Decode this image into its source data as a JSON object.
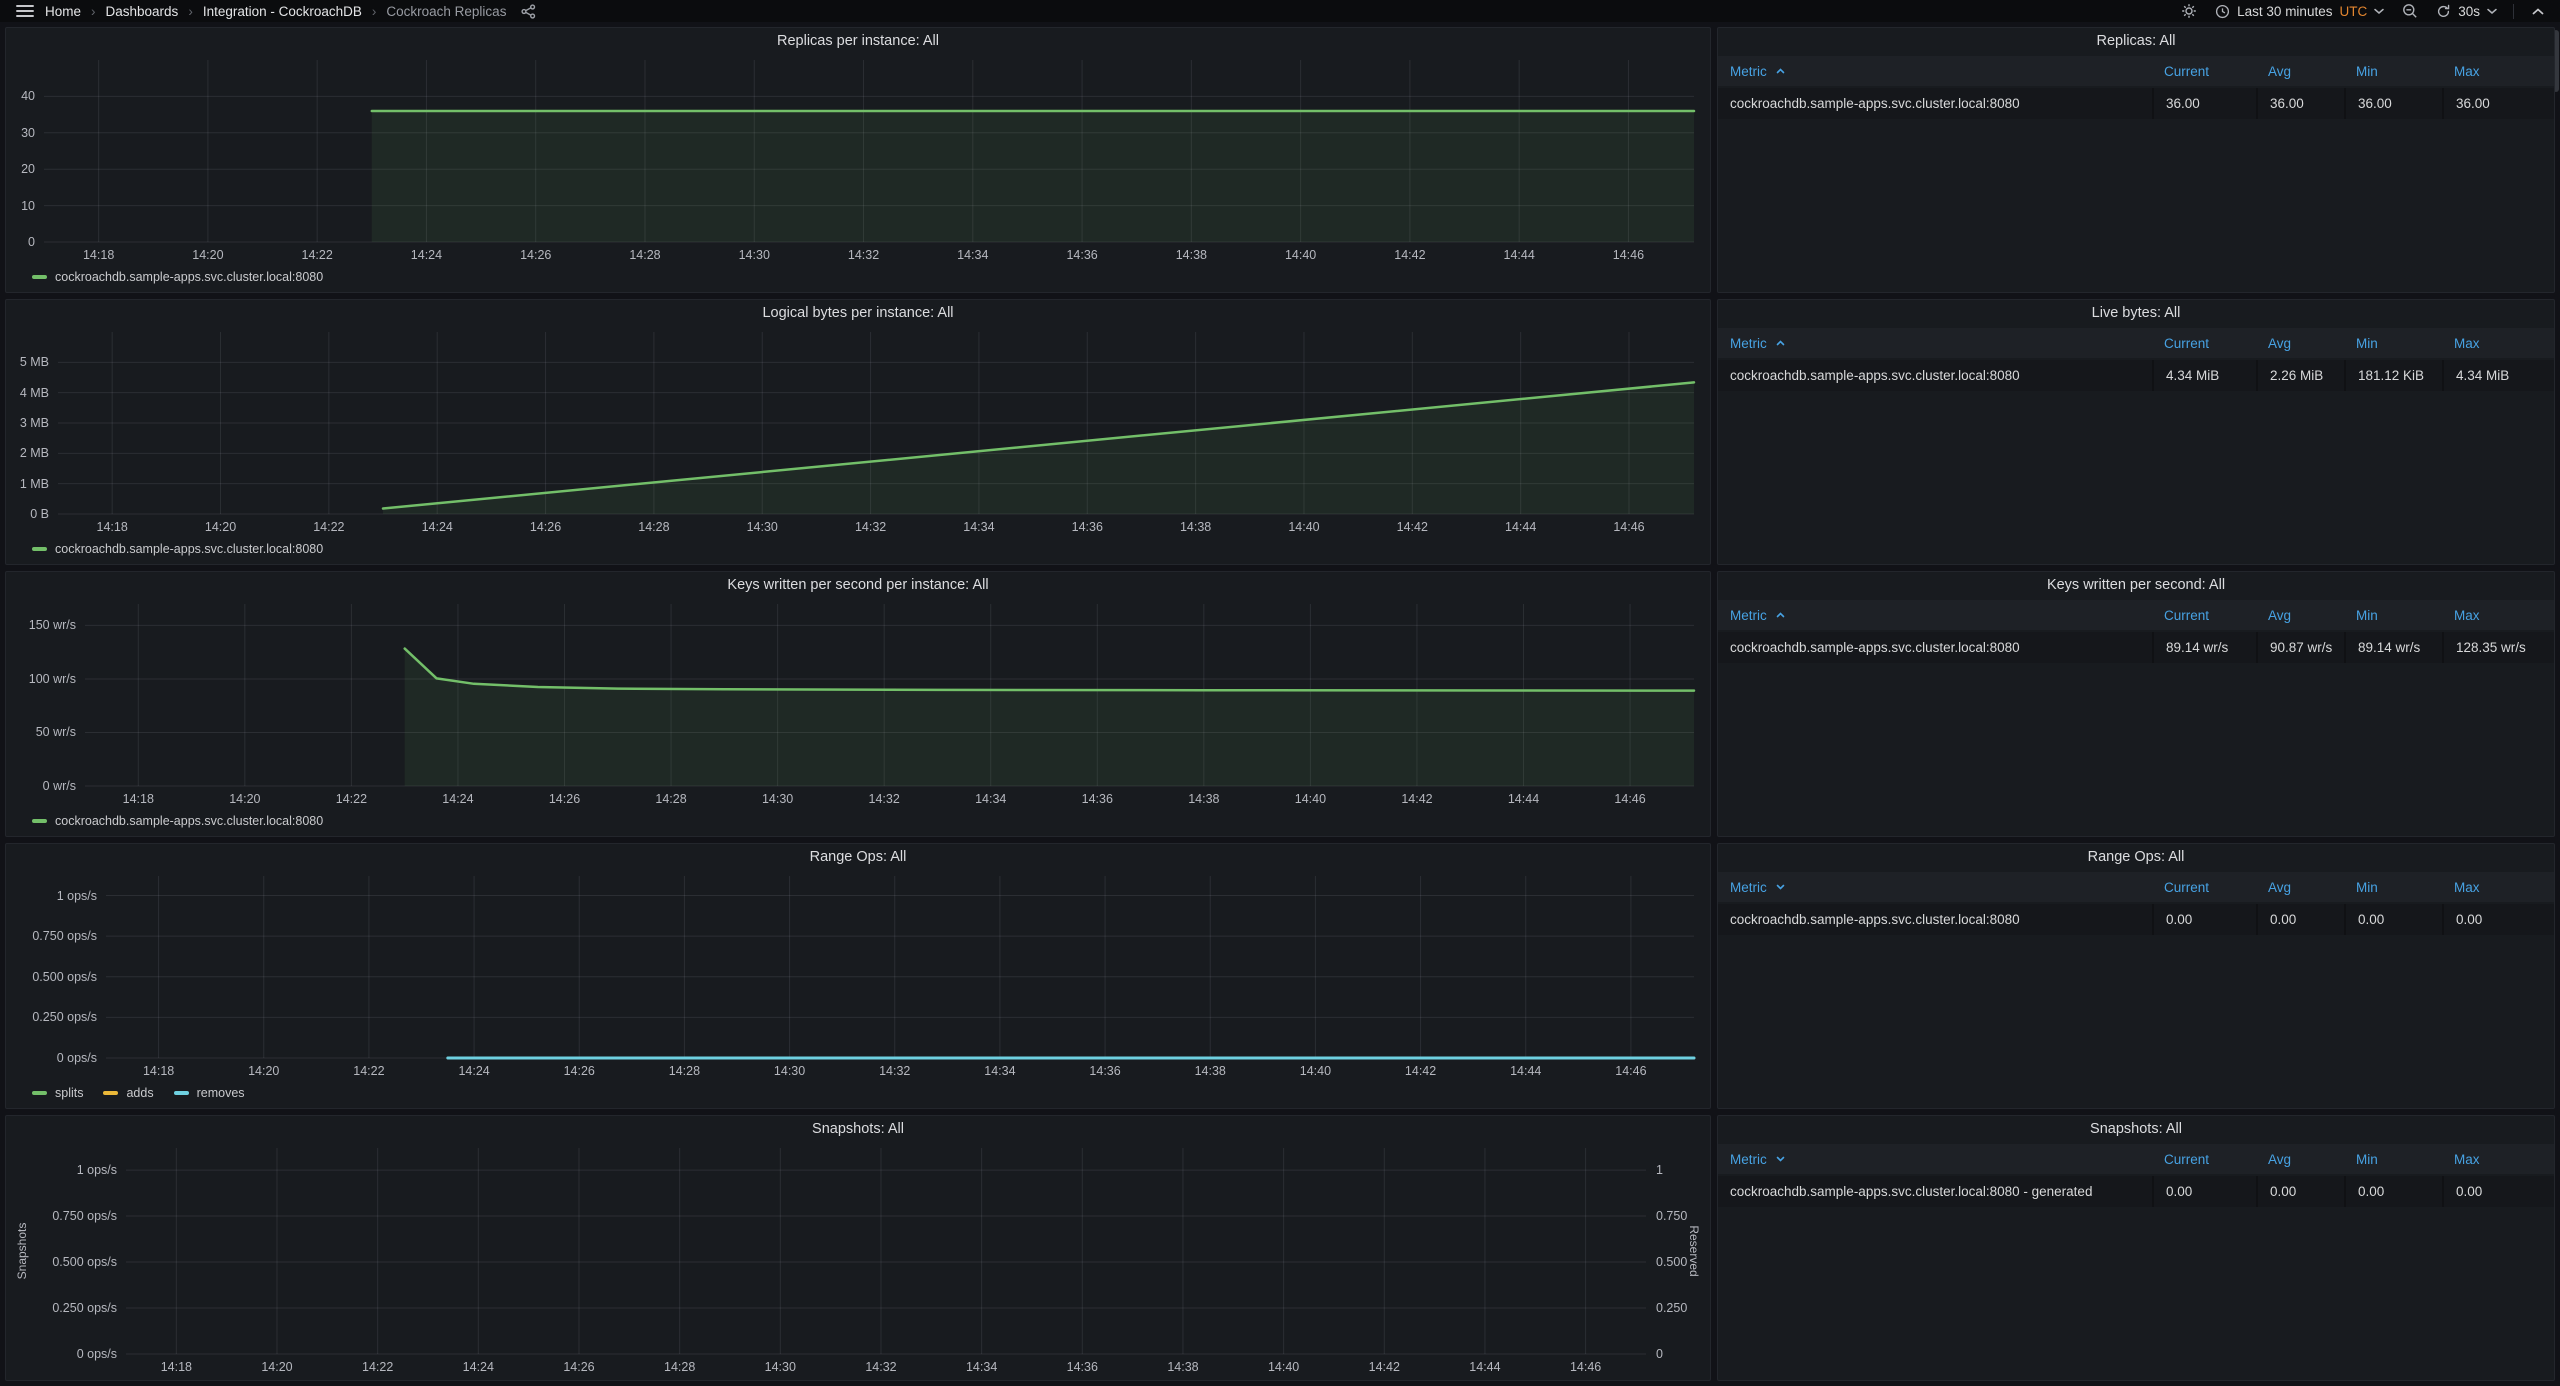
{
  "navbar": {
    "breadcrumbs": [
      "Home",
      "Dashboards",
      "Integration - CockroachDB",
      "Cockroach Replicas"
    ],
    "separator": "›",
    "time_range": "Last 30 minutes",
    "timezone": "UTC",
    "refresh_interval": "30s"
  },
  "colors": {
    "page_bg": "#111217",
    "panel_bg": "#181b1f",
    "grid": "rgba(204,204,220,0.11)",
    "header_blue": "#47a2e3",
    "utc_orange": "#e2852f",
    "series": {
      "green": "#73bf69",
      "yellow": "#eab839",
      "cyan": "#6ed0e0"
    }
  },
  "chart_data": [
    {
      "type": "line",
      "title": "Replicas per instance: All",
      "x_domain": [
        17,
        47.2
      ],
      "x_tick_labels": [
        "14:18",
        "14:20",
        "14:22",
        "14:24",
        "14:26",
        "14:28",
        "14:30",
        "14:32",
        "14:34",
        "14:36",
        "14:38",
        "14:40",
        "14:42",
        "14:44",
        "14:46"
      ],
      "y_ticks": [
        {
          "v": 0,
          "label": "0"
        },
        {
          "v": 10,
          "label": "10"
        },
        {
          "v": 20,
          "label": "20"
        },
        {
          "v": 30,
          "label": "30"
        },
        {
          "v": 40,
          "label": "40"
        }
      ],
      "y_max": 50,
      "series": [
        {
          "name": "cockroachdb.sample-apps.svc.cluster.local:8080",
          "color": "green",
          "fill": true,
          "width": 2.5,
          "points": [
            [
              23,
              36
            ],
            [
              47.2,
              36
            ]
          ]
        }
      ],
      "legend": [
        {
          "label": "cockroachdb.sample-apps.svc.cluster.local:8080",
          "color": "green"
        }
      ]
    },
    {
      "type": "line",
      "title": "Logical bytes per instance: All",
      "x_domain": [
        17,
        47.2
      ],
      "x_tick_labels": [
        "14:18",
        "14:20",
        "14:22",
        "14:24",
        "14:26",
        "14:28",
        "14:30",
        "14:32",
        "14:34",
        "14:36",
        "14:38",
        "14:40",
        "14:42",
        "14:44",
        "14:46"
      ],
      "y_ticks": [
        {
          "v": 0,
          "label": "0 B"
        },
        {
          "v": 1,
          "label": "1 MB"
        },
        {
          "v": 2,
          "label": "2 MB"
        },
        {
          "v": 3,
          "label": "3 MB"
        },
        {
          "v": 4,
          "label": "4 MB"
        },
        {
          "v": 5,
          "label": "5 MB"
        }
      ],
      "y_max": 6,
      "y_unit": "MB",
      "series": [
        {
          "name": "cockroachdb.sample-apps.svc.cluster.local:8080",
          "color": "green",
          "fill": true,
          "width": 2.5,
          "points": [
            [
              23,
              0.18
            ],
            [
              47.2,
              4.34
            ]
          ]
        }
      ],
      "legend": [
        {
          "label": "cockroachdb.sample-apps.svc.cluster.local:8080",
          "color": "green"
        }
      ]
    },
    {
      "type": "line",
      "title": "Keys written per second per instance: All",
      "x_domain": [
        17,
        47.2
      ],
      "x_tick_labels": [
        "14:18",
        "14:20",
        "14:22",
        "14:24",
        "14:26",
        "14:28",
        "14:30",
        "14:32",
        "14:34",
        "14:36",
        "14:38",
        "14:40",
        "14:42",
        "14:44",
        "14:46"
      ],
      "y_ticks": [
        {
          "v": 0,
          "label": "0 wr/s"
        },
        {
          "v": 50,
          "label": "50 wr/s"
        },
        {
          "v": 100,
          "label": "100 wr/s"
        },
        {
          "v": 150,
          "label": "150 wr/s"
        }
      ],
      "y_max": 170,
      "y_unit": "wr/s",
      "series": [
        {
          "name": "cockroachdb.sample-apps.svc.cluster.local:8080",
          "color": "green",
          "fill": true,
          "width": 2.5,
          "points": [
            [
              23,
              128.35
            ],
            [
              23.6,
              100.5
            ],
            [
              24.3,
              95.5
            ],
            [
              25.5,
              92.5
            ],
            [
              27,
              91
            ],
            [
              29,
              90.3
            ],
            [
              33,
              89.8
            ],
            [
              38,
              89.5
            ],
            [
              47.2,
              89.14
            ]
          ]
        }
      ],
      "legend": [
        {
          "label": "cockroachdb.sample-apps.svc.cluster.local:8080",
          "color": "green"
        }
      ]
    },
    {
      "type": "line",
      "title": "Range Ops: All",
      "x_domain": [
        17,
        47.2
      ],
      "x_tick_labels": [
        "14:18",
        "14:20",
        "14:22",
        "14:24",
        "14:26",
        "14:28",
        "14:30",
        "14:32",
        "14:34",
        "14:36",
        "14:38",
        "14:40",
        "14:42",
        "14:44",
        "14:46"
      ],
      "y_ticks": [
        {
          "v": 0,
          "label": "0 ops/s"
        },
        {
          "v": 0.25,
          "label": "0.250 ops/s"
        },
        {
          "v": 0.5,
          "label": "0.500 ops/s"
        },
        {
          "v": 0.75,
          "label": "0.750 ops/s"
        },
        {
          "v": 1,
          "label": "1 ops/s"
        }
      ],
      "y_max": 1.12,
      "y_unit": "ops/s",
      "series": [
        {
          "name": "splits",
          "color": "green",
          "fill": false,
          "width": 2.5,
          "points": [
            [
              23.5,
              0
            ],
            [
              47.2,
              0
            ]
          ]
        },
        {
          "name": "adds",
          "color": "yellow",
          "fill": false,
          "width": 2.5,
          "points": [
            [
              23.5,
              0
            ],
            [
              47.2,
              0
            ]
          ]
        },
        {
          "name": "removes",
          "color": "cyan",
          "fill": false,
          "width": 3,
          "points": [
            [
              23.5,
              0
            ],
            [
              47.2,
              0
            ]
          ]
        }
      ],
      "legend": [
        {
          "label": "splits",
          "color": "green"
        },
        {
          "label": "adds",
          "color": "yellow"
        },
        {
          "label": "removes",
          "color": "cyan"
        }
      ]
    },
    {
      "type": "line",
      "title": "Snapshots: All",
      "x_domain": [
        17,
        47.2
      ],
      "x_tick_labels": [
        "14:18",
        "14:20",
        "14:22",
        "14:24",
        "14:26",
        "14:28",
        "14:30",
        "14:32",
        "14:34",
        "14:36",
        "14:38",
        "14:40",
        "14:42",
        "14:44",
        "14:46"
      ],
      "axis_label_left": "Snapshots",
      "y_ticks": [
        {
          "v": 0,
          "label": "0 ops/s"
        },
        {
          "v": 0.25,
          "label": "0.250 ops/s"
        },
        {
          "v": 0.5,
          "label": "0.500 ops/s"
        },
        {
          "v": 0.75,
          "label": "0.750 ops/s"
        },
        {
          "v": 1,
          "label": "1 ops/s"
        }
      ],
      "y_max": 1.12,
      "y_unit": "ops/s",
      "right_axis": {
        "label": "Reserved",
        "ticks": [
          {
            "v": 0,
            "label": "0"
          },
          {
            "v": 0.25,
            "label": "0.250"
          },
          {
            "v": 0.5,
            "label": "0.500"
          },
          {
            "v": 0.75,
            "label": "0.750"
          },
          {
            "v": 1,
            "label": "1"
          }
        ]
      },
      "series": [],
      "legend": []
    }
  ],
  "tables": [
    {
      "title": "Replicas: All",
      "sort": "asc",
      "columns": [
        "Metric",
        "Current",
        "Avg",
        "Min",
        "Max"
      ],
      "rows": [
        [
          "cockroachdb.sample-apps.svc.cluster.local:8080",
          "36.00",
          "36.00",
          "36.00",
          "36.00"
        ]
      ]
    },
    {
      "title": "Live bytes: All",
      "sort": "asc",
      "columns": [
        "Metric",
        "Current",
        "Avg",
        "Min",
        "Max"
      ],
      "rows": [
        [
          "cockroachdb.sample-apps.svc.cluster.local:8080",
          "4.34 MiB",
          "2.26 MiB",
          "181.12 KiB",
          "4.34 MiB"
        ]
      ]
    },
    {
      "title": "Keys written per second: All",
      "sort": "asc",
      "columns": [
        "Metric",
        "Current",
        "Avg",
        "Min",
        "Max"
      ],
      "rows": [
        [
          "cockroachdb.sample-apps.svc.cluster.local:8080",
          "89.14 wr/s",
          "90.87 wr/s",
          "89.14 wr/s",
          "128.35 wr/s"
        ]
      ]
    },
    {
      "title": "Range Ops: All",
      "sort": "desc",
      "columns": [
        "Metric",
        "Current",
        "Avg",
        "Min",
        "Max"
      ],
      "rows": [
        [
          "cockroachdb.sample-apps.svc.cluster.local:8080",
          "0.00",
          "0.00",
          "0.00",
          "0.00"
        ]
      ]
    },
    {
      "title": "Snapshots: All",
      "sort": "desc",
      "columns": [
        "Metric",
        "Current",
        "Avg",
        "Min",
        "Max"
      ],
      "rows": [
        [
          "cockroachdb.sample-apps.svc.cluster.local:8080 - generated",
          "0.00",
          "0.00",
          "0.00",
          "0.00"
        ]
      ]
    }
  ]
}
